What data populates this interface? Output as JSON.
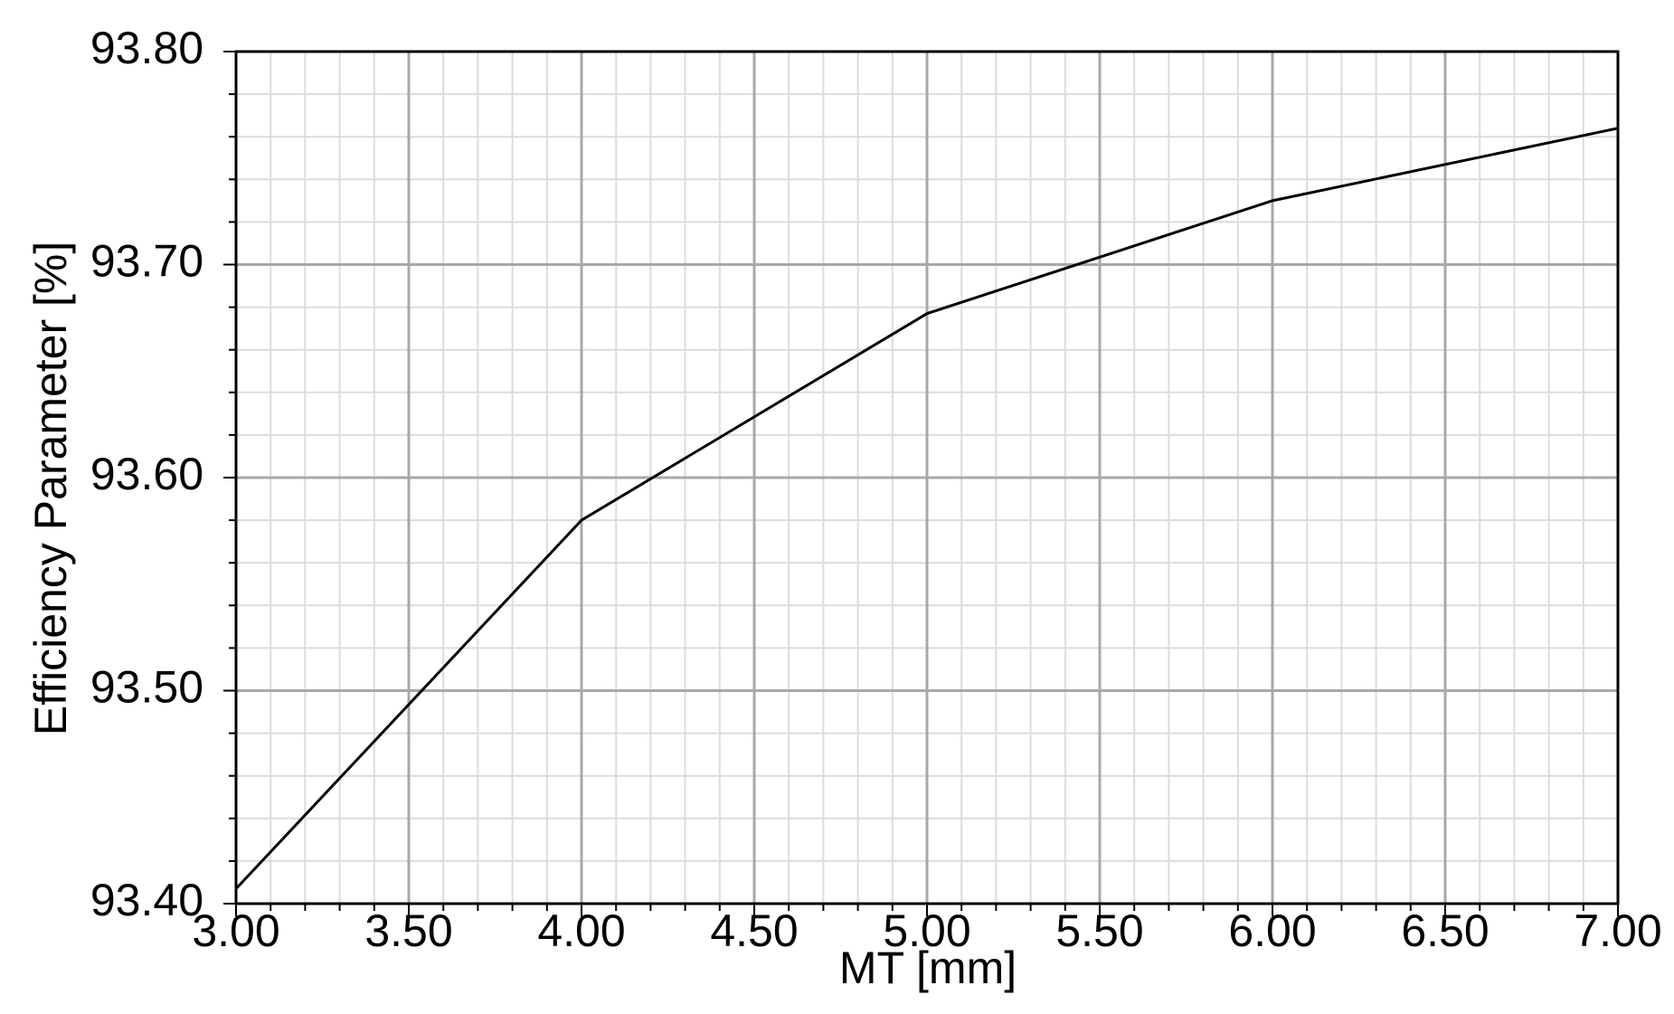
{
  "chart_data": {
    "type": "line",
    "x_label": "MT [mm]",
    "y_label": "Efficiency Parameter [%]",
    "x": [
      3,
      4,
      5,
      6,
      7
    ],
    "series": [
      {
        "color": "#000000",
        "values": [
          93.407,
          93.58,
          93.677,
          93.73,
          93.764
        ]
      }
    ],
    "xlim": [
      3,
      7
    ],
    "xticks": [
      {
        "value": 3,
        "label": "3.00"
      },
      {
        "value": 3.5,
        "label": "3.50"
      },
      {
        "value": 4,
        "label": "4.00"
      },
      {
        "value": 4.5,
        "label": "4.50"
      },
      {
        "value": 5,
        "label": "5.00"
      },
      {
        "value": 5.5,
        "label": "5.50"
      },
      {
        "value": 6,
        "label": "6.00"
      },
      {
        "value": 6.5,
        "label": "6.50"
      },
      {
        "value": 7,
        "label": "7.00"
      }
    ],
    "ylim": [
      93.4,
      93.8
    ],
    "yticks": [
      {
        "value": 93.4,
        "label": "93.40"
      },
      {
        "value": 93.5,
        "label": "93.50"
      },
      {
        "value": 93.6,
        "label": "93.60"
      },
      {
        "value": 93.7,
        "label": "93.70"
      },
      {
        "value": 93.8,
        "label": "93.80"
      }
    ],
    "grid": true,
    "minor_grid": true
  }
}
